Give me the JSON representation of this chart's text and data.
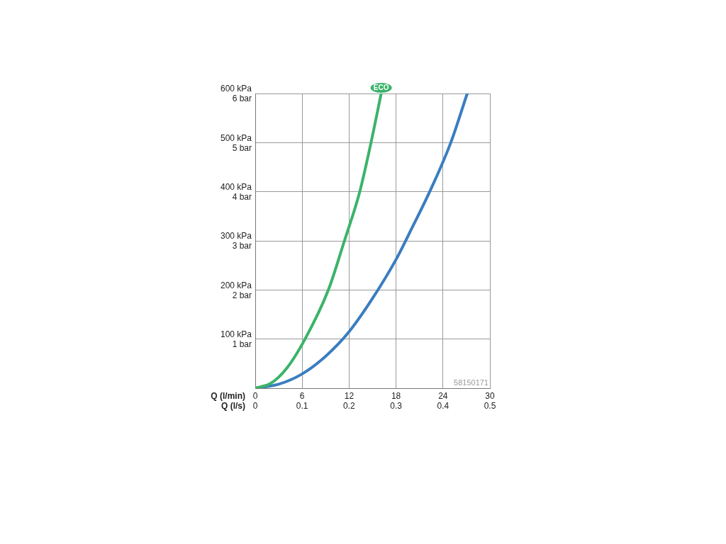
{
  "chart_data": {
    "type": "line",
    "xlabel": "Q (l/min)",
    "x2label": "Q (l/s)",
    "xlim": [
      0,
      30
    ],
    "xticks": [
      0,
      6,
      12,
      18,
      24,
      30
    ],
    "x2lim": [
      0,
      0.5
    ],
    "x2ticks": [
      0,
      0.1,
      0.2,
      0.3,
      0.4,
      0.5
    ],
    "ylim": [
      0,
      600
    ],
    "yticks": [
      {
        "value": 100,
        "label": "100 kPa"
      },
      {
        "value": 200,
        "label": "200 kPa"
      },
      {
        "value": 300,
        "label": "300 kPa"
      },
      {
        "value": 400,
        "label": "400 kPa"
      },
      {
        "value": 500,
        "label": "500 kPa"
      },
      {
        "value": 600,
        "label": "600 kPa"
      }
    ],
    "y2lim": [
      0,
      6
    ],
    "y2ticks": [
      {
        "value": 1,
        "label": "1 bar"
      },
      {
        "value": 2,
        "label": "2 bar"
      },
      {
        "value": 3,
        "label": "3 bar"
      },
      {
        "value": 4,
        "label": "4 bar"
      },
      {
        "value": 5,
        "label": "5 bar"
      },
      {
        "value": 6,
        "label": "6 bar"
      }
    ],
    "grid": true,
    "legend": false,
    "marker": "none",
    "line_style": "solid",
    "annotations": [
      "58150171"
    ],
    "series": [
      {
        "name": "ECO",
        "color": "#3bb36a",
        "x": [
          0,
          2,
          4,
          6.37,
          9.35,
          11.4,
          13.36,
          14.8,
          16.1
        ],
        "values": [
          0,
          10,
          40,
          100,
          200,
          300,
          400,
          500,
          600
        ]
      },
      {
        "color": "#3a7dc0",
        "x": [
          0,
          3,
          6,
          9,
          12,
          15,
          18,
          20,
          22.3,
          25,
          27.1
        ],
        "values": [
          0,
          8,
          29,
          65,
          115,
          183,
          262,
          325,
          400,
          500,
          600
        ]
      }
    ]
  }
}
